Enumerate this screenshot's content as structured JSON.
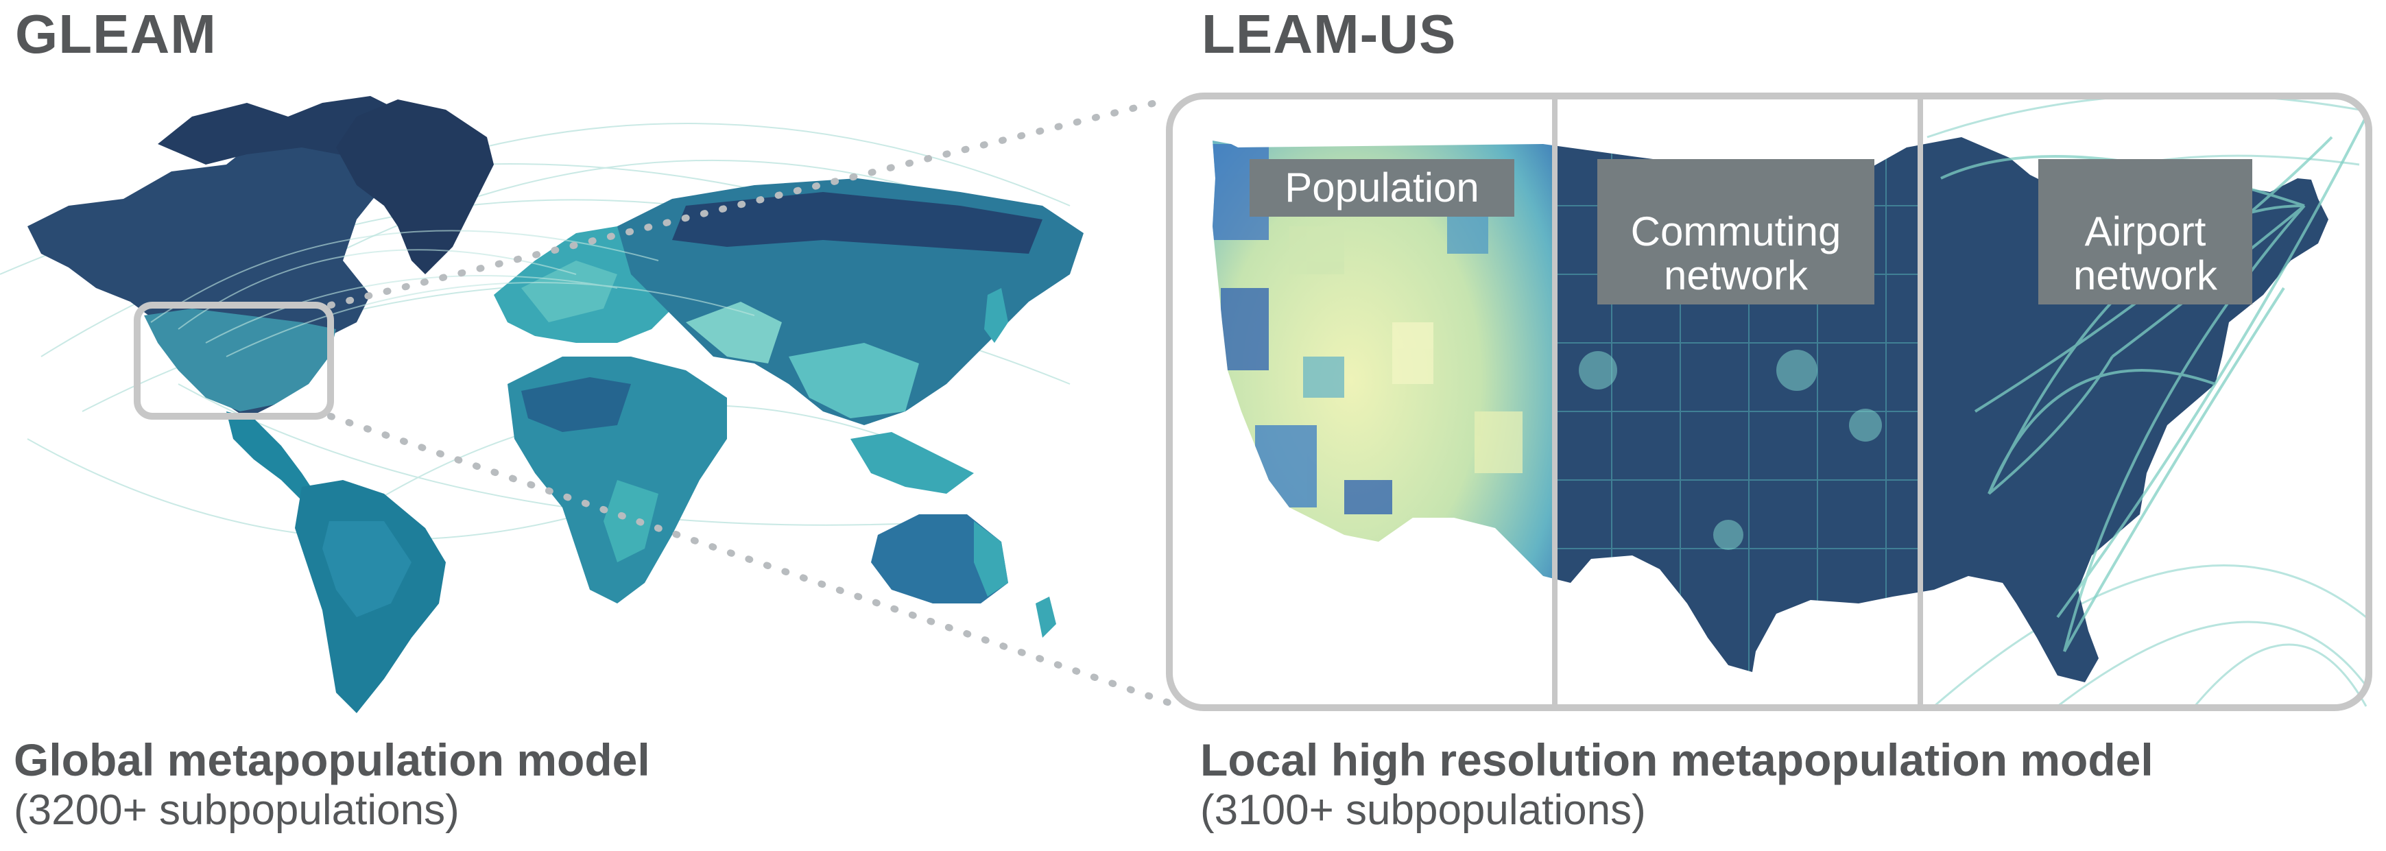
{
  "left": {
    "title": "GLEAM",
    "caption_main": "Global metapopulation model",
    "caption_sub": "(3200+ subpopulations)"
  },
  "right": {
    "title": "LEAM-US",
    "caption_main": "Local high resolution metapopulation model",
    "caption_sub": "(3100+ subpopulations)",
    "panels": [
      {
        "label": "Population"
      },
      {
        "label": "Commuting\nnetwork"
      },
      {
        "label": "Airport\nnetwork"
      }
    ]
  },
  "colors": {
    "ocean_bg": "#ffffff",
    "land_dark": "#27416b",
    "land_mid": "#1e7e9a",
    "land_teal": "#3aa8b5",
    "land_light": "#7ccfc9",
    "pop_yellow": "#e6efb0",
    "pop_blue": "#2b5fb0",
    "arc": "#7fcfc4",
    "frame": "#c7c7c7",
    "label_bg": "#757d80",
    "text": "#555759"
  }
}
